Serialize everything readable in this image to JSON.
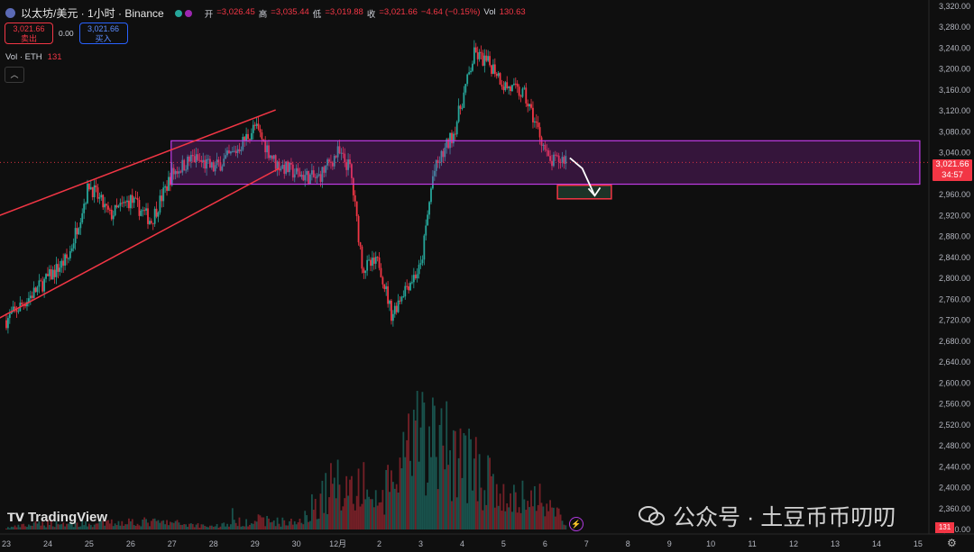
{
  "header": {
    "title": "以太坊/美元 · 1小时 · Binance",
    "open_label": "开",
    "open_value": "=3,026.45",
    "high_label": "高",
    "high_value": "=3,035.44",
    "low_label": "低",
    "low_value": "=3,019.88",
    "close_label": "收",
    "close_value": "=3,021.66",
    "change": "−4.64 (−0.15%)",
    "vol_label": "Vol",
    "vol_value": "130.63"
  },
  "trade": {
    "sell_price": "3,021.66",
    "sell_label": "卖出",
    "spread": "0.00",
    "buy_price": "3,021.66",
    "buy_label": "买入"
  },
  "volume_indicator": {
    "label": "Vol · ETH",
    "value": "131"
  },
  "collapse_icon": "chevron-up-icon",
  "current_price": {
    "value": "3,021.66",
    "countdown": "34:57"
  },
  "volume_tag": "131",
  "logo": "TradingView",
  "watermark": "公众号 · 土豆币币叨叨",
  "colors": {
    "up": "#26a69a",
    "down": "#f23645",
    "zone": "#9c27b0",
    "target": "#f23645"
  },
  "chart_data": {
    "type": "candlestick",
    "y_axis": {
      "ticks": [
        3320,
        3280,
        3240,
        3200,
        3160,
        3120,
        3080,
        3040,
        3000,
        2960,
        2920,
        2880,
        2840,
        2800,
        2760,
        2720,
        2680,
        2640,
        2600,
        2560,
        2520,
        2480,
        2440,
        2400,
        2360,
        2320
      ],
      "tick_labels": [
        "3,320.00",
        "3,280.00",
        "3,240.00",
        "3,200.00",
        "3,160.00",
        "3,120.00",
        "3,080.00",
        "3,040.00",
        "3,000.00",
        "2,960.00",
        "2,920.00",
        "2,880.00",
        "2,840.00",
        "2,800.00",
        "2,760.00",
        "2,720.00",
        "2,680.00",
        "2,640.00",
        "2,600.00",
        "2,560.00",
        "2,520.00",
        "2,480.00",
        "2,440.00",
        "2,400.00",
        "2,360.00",
        "2,320.00"
      ],
      "range": [
        2320,
        3330
      ]
    },
    "x_axis": {
      "labels": [
        "23",
        "24",
        "25",
        "26",
        "27",
        "28",
        "29",
        "30",
        "12月",
        "2",
        "3",
        "4",
        "5",
        "6",
        "7",
        "8",
        "9",
        "10",
        "11",
        "12",
        "13",
        "14",
        "15"
      ]
    },
    "price_path": [
      [
        0,
        2720
      ],
      [
        0.5,
        2760
      ],
      [
        1,
        2800
      ],
      [
        1.5,
        2840
      ],
      [
        2,
        2980
      ],
      [
        2.5,
        2920
      ],
      [
        3,
        2950
      ],
      [
        3.5,
        2910
      ],
      [
        4,
        3000
      ],
      [
        4.5,
        3030
      ],
      [
        5,
        3010
      ],
      [
        5.5,
        3040
      ],
      [
        6,
        3090
      ],
      [
        6.5,
        3020
      ],
      [
        7,
        3000
      ],
      [
        7.5,
        2990
      ],
      [
        8,
        3040
      ],
      [
        8.3,
        3010
      ],
      [
        8.6,
        2820
      ],
      [
        9,
        2830
      ],
      [
        9.3,
        2730
      ],
      [
        9.6,
        2780
      ],
      [
        10,
        2820
      ],
      [
        10.3,
        3000
      ],
      [
        10.8,
        3080
      ],
      [
        11.3,
        3230
      ],
      [
        11.8,
        3200
      ],
      [
        12,
        3170
      ],
      [
        12.5,
        3150
      ],
      [
        12.9,
        3070
      ],
      [
        13.1,
        3020
      ],
      [
        13.5,
        3030
      ]
    ],
    "volume_path": [
      [
        0,
        5
      ],
      [
        1,
        20
      ],
      [
        2,
        15
      ],
      [
        3,
        25
      ],
      [
        4,
        20
      ],
      [
        5,
        10
      ],
      [
        6,
        30
      ],
      [
        7,
        20
      ],
      [
        8,
        150
      ],
      [
        9,
        80
      ],
      [
        10,
        280
      ],
      [
        11,
        230
      ],
      [
        12,
        90
      ],
      [
        13,
        100
      ],
      [
        13.5,
        20
      ]
    ],
    "volume_max": 300,
    "annotations": [
      {
        "type": "zone",
        "x": [
          4,
          22
        ],
        "y": [
          2980,
          3063
        ],
        "label": ""
      },
      {
        "type": "target_box",
        "x": [
          13.3,
          14.6
        ],
        "y": [
          2952,
          2978
        ],
        "label": ""
      },
      {
        "type": "trendline",
        "points": [
          [
            -0.5,
            2910
          ],
          [
            6.5,
            3122
          ]
        ]
      },
      {
        "type": "trendline",
        "points": [
          [
            -0.5,
            2710
          ],
          [
            6.6,
            3011
          ]
        ]
      },
      {
        "type": "arrow",
        "points": [
          [
            13.6,
            3030
          ],
          [
            13.9,
            3010
          ],
          [
            14.2,
            2958
          ]
        ]
      }
    ],
    "current_price": 3021.66
  }
}
